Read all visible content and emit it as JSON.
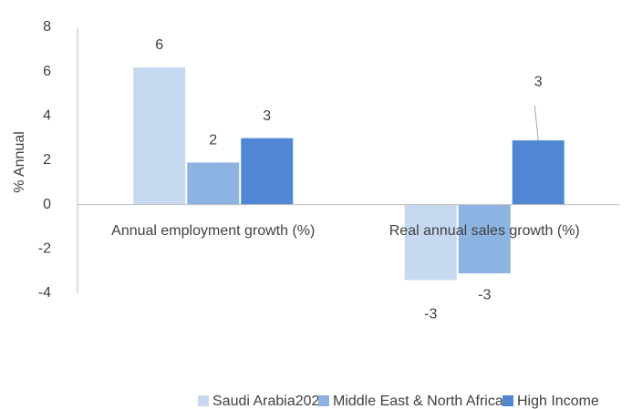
{
  "chart_data": {
    "type": "bar",
    "y_label": "% Annual",
    "categories": [
      "Annual employment growth (%)",
      "Real annual sales growth (%)"
    ],
    "series": [
      {
        "name": "Saudi Arabia2022",
        "color": "#c6d9f1",
        "values": [
          6.2,
          -3.4
        ],
        "value_labels": [
          "6",
          "-3"
        ]
      },
      {
        "name": "Middle East & North Africa",
        "color": "#8db3e2",
        "values": [
          1.9,
          -3.1
        ],
        "value_labels": [
          "2",
          "-3"
        ]
      },
      {
        "name": "High Income",
        "color": "#4f87d4",
        "values": [
          3.0,
          2.9
        ],
        "value_labels": [
          "3",
          "3"
        ]
      }
    ],
    "ylim": [
      -4,
      8
    ],
    "yticks": [
      -4,
      -2,
      0,
      2,
      4,
      6,
      8
    ],
    "grid": false,
    "legend": "bottom"
  }
}
